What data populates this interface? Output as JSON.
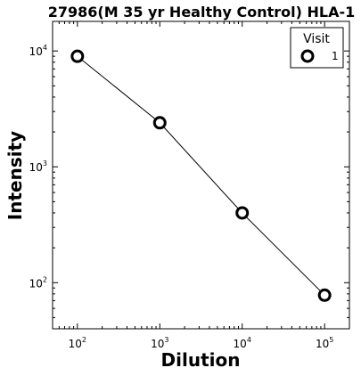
{
  "chart_data": {
    "type": "line",
    "title": "27986(M 35 yr Healthy Control) HLA-1",
    "xlabel": "Dilution",
    "ylabel": "Intensity",
    "x_scale": "log",
    "y_scale": "log",
    "xlim": [
      50,
      200000
    ],
    "ylim": [
      40,
      18000
    ],
    "x_ticks": [
      {
        "value": 100,
        "base": "10",
        "exp": "2"
      },
      {
        "value": 1000,
        "base": "10",
        "exp": "3"
      },
      {
        "value": 10000,
        "base": "10",
        "exp": "4"
      },
      {
        "value": 100000,
        "base": "10",
        "exp": "5"
      }
    ],
    "y_ticks": [
      {
        "value": 100,
        "base": "10",
        "exp": "2"
      },
      {
        "value": 1000,
        "base": "10",
        "exp": "3"
      },
      {
        "value": 10000,
        "base": "10",
        "exp": "4"
      }
    ],
    "x": [
      100,
      1000,
      10000,
      100000
    ],
    "series": [
      {
        "name": "1",
        "values": [
          9000,
          2400,
          400,
          78
        ]
      }
    ],
    "legend": {
      "title": "Visit",
      "position": "top-right"
    },
    "grid": false,
    "line_color": "#000000",
    "marker": "open-circle"
  }
}
